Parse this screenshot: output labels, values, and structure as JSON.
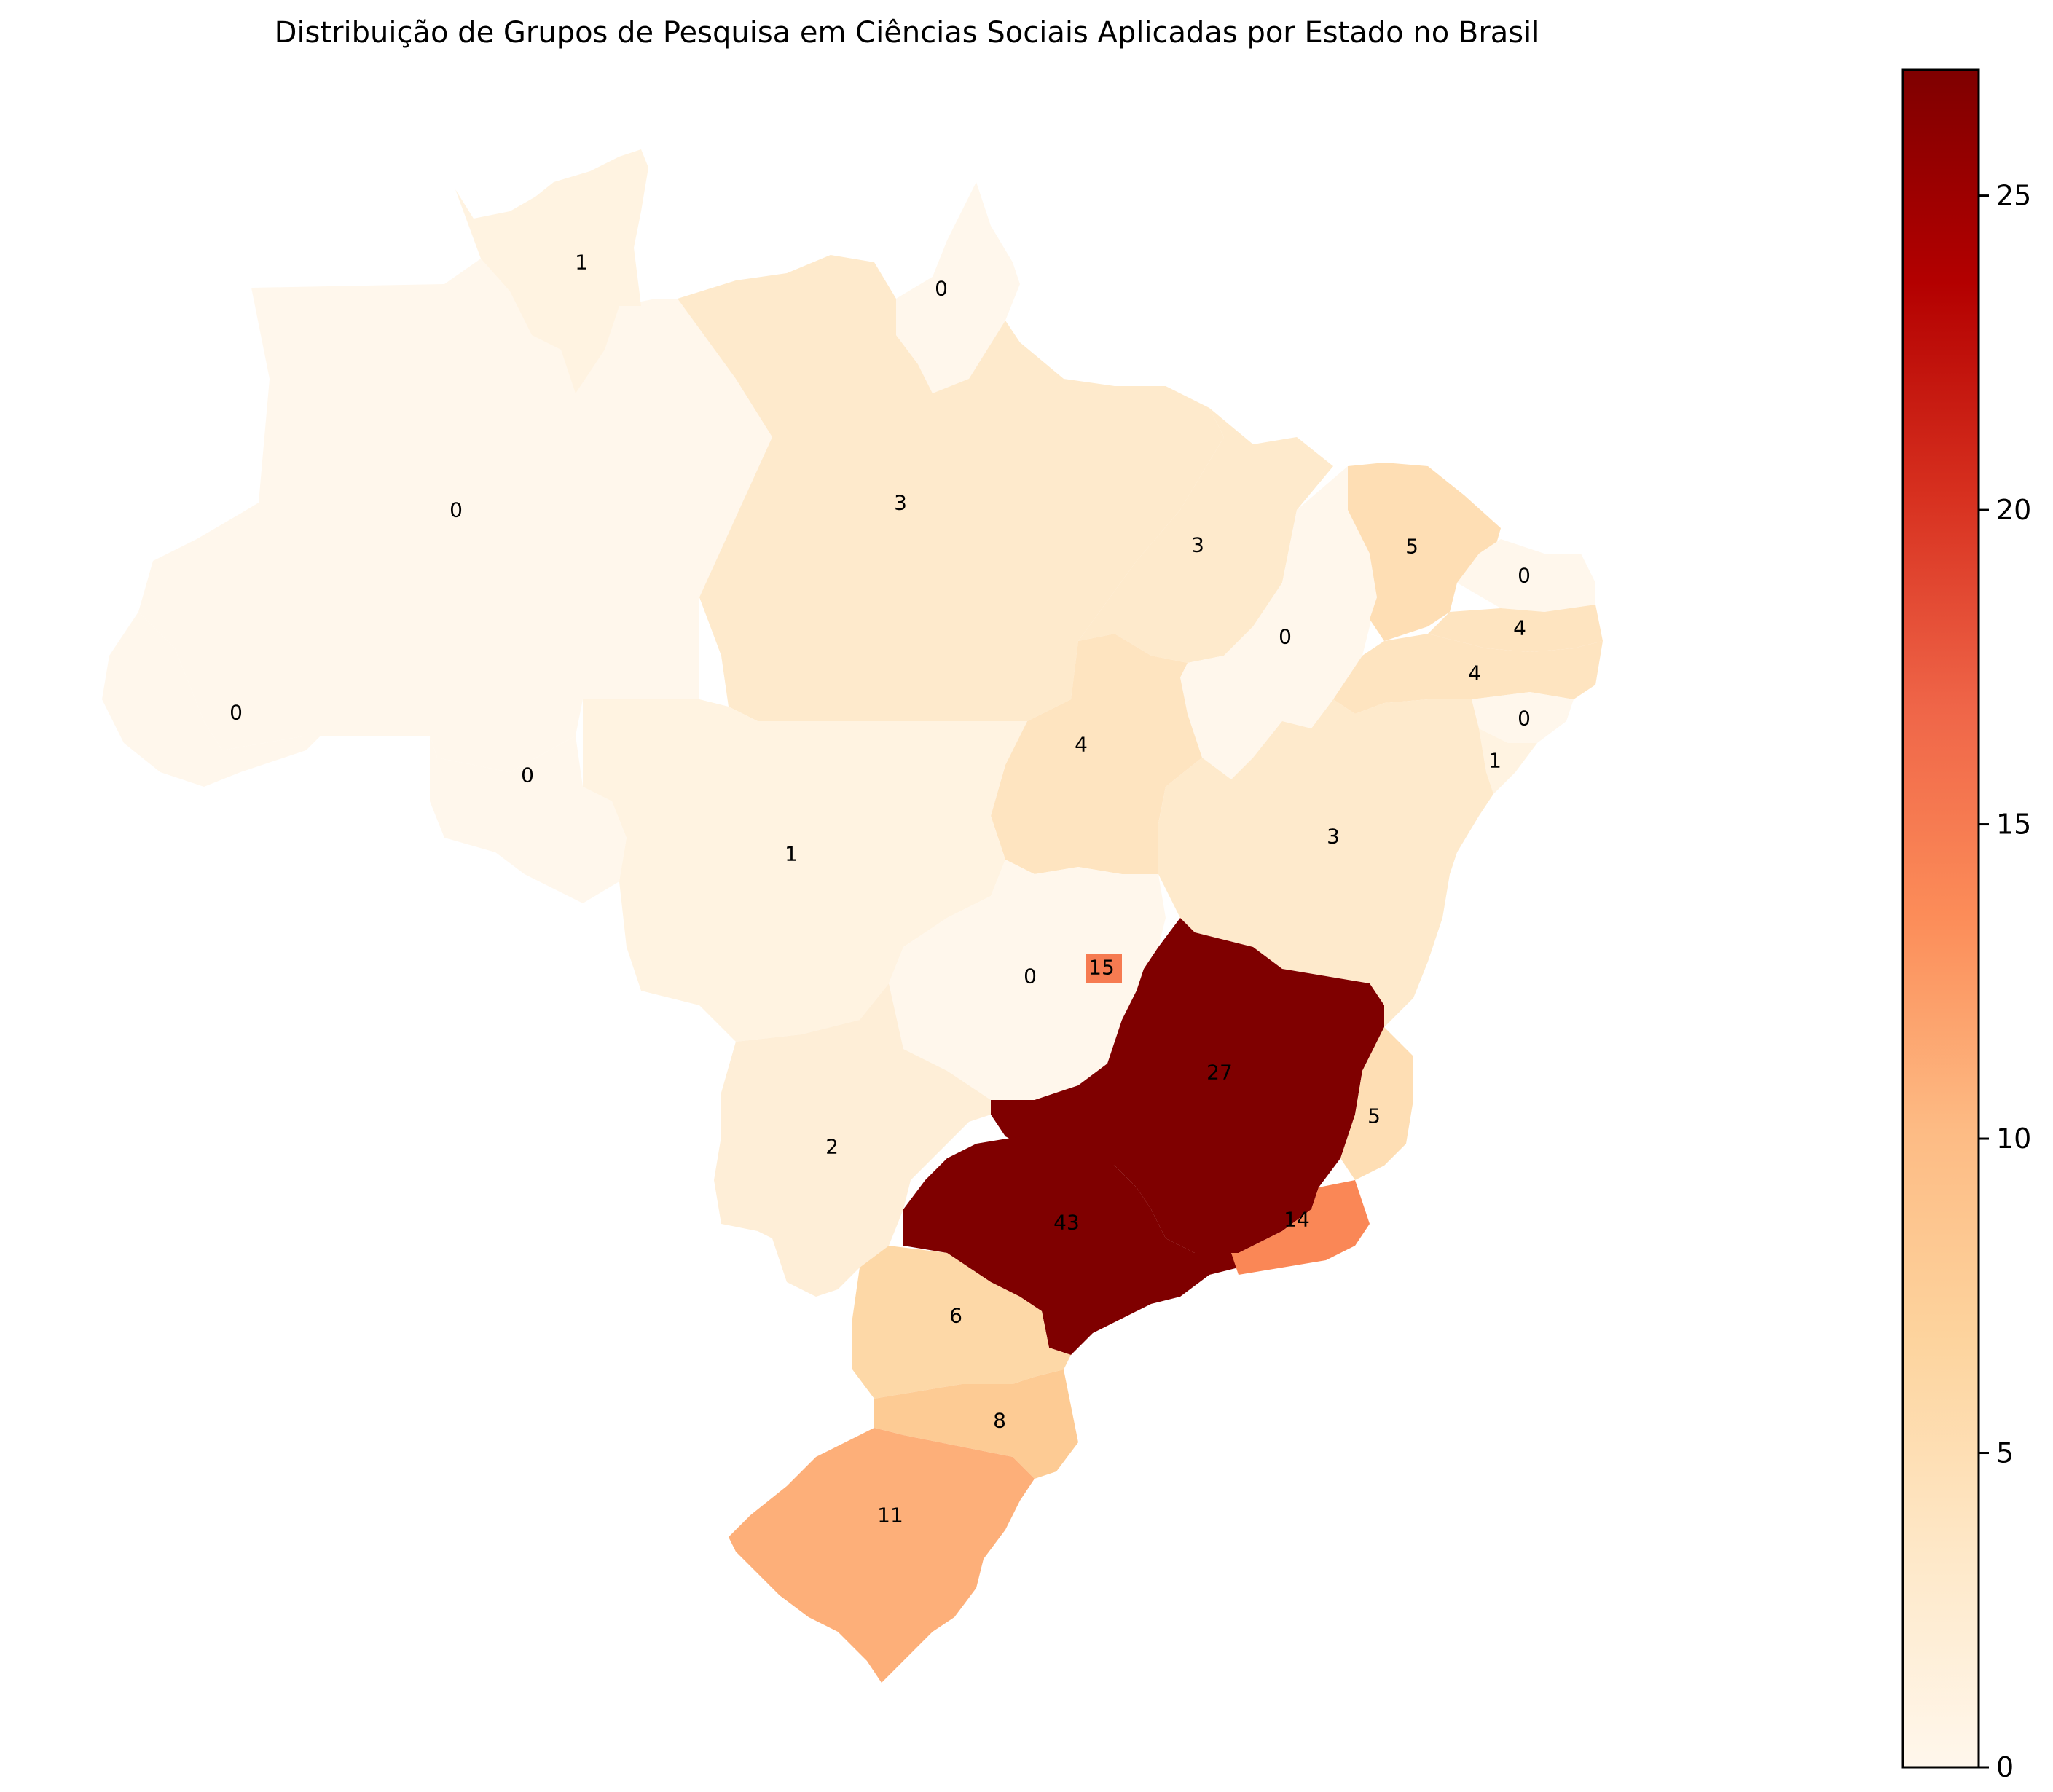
{
  "title": "Distribuição de Grupos de Pesquisa em Ciências Sociais Aplicadas por Estado no Brasil",
  "colormap": "OrRd",
  "colorbar": {
    "ticks": [
      "0",
      "5",
      "10",
      "15",
      "20",
      "25"
    ],
    "min": 0,
    "max": 27
  },
  "states": [
    {
      "id": "RR",
      "value": 1,
      "label": "1"
    },
    {
      "id": "AP",
      "value": 0,
      "label": "0"
    },
    {
      "id": "AM",
      "value": 0,
      "label": "0"
    },
    {
      "id": "PA",
      "value": 3,
      "label": "3"
    },
    {
      "id": "MA",
      "value": 3,
      "label": "3"
    },
    {
      "id": "CE",
      "value": 5,
      "label": "5"
    },
    {
      "id": "RN",
      "value": 0,
      "label": "0"
    },
    {
      "id": "PB",
      "value": 4,
      "label": "4"
    },
    {
      "id": "PE",
      "value": 4,
      "label": "4"
    },
    {
      "id": "PI",
      "value": 0,
      "label": "0"
    },
    {
      "id": "AL",
      "value": 0,
      "label": "0"
    },
    {
      "id": "SE",
      "value": 1,
      "label": "1"
    },
    {
      "id": "AC",
      "value": 0,
      "label": "0"
    },
    {
      "id": "RO",
      "value": 0,
      "label": "0"
    },
    {
      "id": "TO",
      "value": 4,
      "label": "4"
    },
    {
      "id": "BA",
      "value": 3,
      "label": "3"
    },
    {
      "id": "MT",
      "value": 1,
      "label": "1"
    },
    {
      "id": "GO",
      "value": 0,
      "label": "0"
    },
    {
      "id": "DF",
      "value": 15,
      "label": "15"
    },
    {
      "id": "MG",
      "value": 27,
      "label": "27"
    },
    {
      "id": "ES",
      "value": 5,
      "label": "5"
    },
    {
      "id": "MS",
      "value": 2,
      "label": "2"
    },
    {
      "id": "SP",
      "value": 43,
      "label": "43"
    },
    {
      "id": "RJ",
      "value": 14,
      "label": "14"
    },
    {
      "id": "PR",
      "value": 6,
      "label": "6"
    },
    {
      "id": "SC",
      "value": 8,
      "label": "8"
    },
    {
      "id": "RS",
      "value": 11,
      "label": "11"
    }
  ]
}
